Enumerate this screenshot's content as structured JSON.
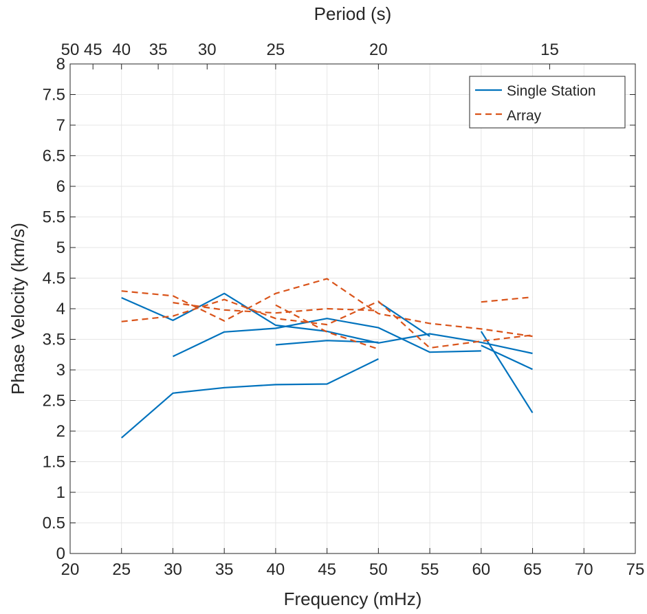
{
  "chart_data": {
    "type": "line",
    "title": "",
    "xlabel": "Frequency (mHz)",
    "ylabel": "Phase Velocity (km/s)",
    "top_xlabel": "Period (s)",
    "xlim": [
      20,
      75
    ],
    "ylim": [
      0,
      8
    ],
    "xticks": [
      "20",
      "25",
      "30",
      "35",
      "40",
      "45",
      "50",
      "55",
      "60",
      "65",
      "70",
      "75"
    ],
    "yticks": [
      "0",
      "0.5",
      "1",
      "1.5",
      "2",
      "2.5",
      "3",
      "3.5",
      "4",
      "4.5",
      "5",
      "5.5",
      "6",
      "6.5",
      "7",
      "7.5",
      "8"
    ],
    "top_xticks": [
      "50",
      "45",
      "40",
      "35",
      "30",
      "25",
      "20",
      "15"
    ],
    "grid": true,
    "legend_position": "top-right",
    "legend": [
      "Single Station",
      "Array"
    ],
    "colors": {
      "Single Station": "#0072BD",
      "Array": "#D95319"
    },
    "series": [
      {
        "group": "Single Station",
        "style": "solid",
        "points": [
          [
            25,
            4.18
          ],
          [
            30,
            3.81
          ],
          [
            35,
            4.25
          ],
          [
            40,
            3.73
          ],
          [
            45,
            3.63
          ],
          [
            50,
            3.44
          ],
          [
            55,
            3.59
          ],
          [
            60,
            3.45
          ],
          [
            65,
            3.27
          ]
        ]
      },
      {
        "group": "Single Station",
        "style": "solid",
        "points": [
          [
            30,
            3.22
          ],
          [
            35,
            3.62
          ],
          [
            40,
            3.68
          ],
          [
            45,
            3.84
          ],
          [
            50,
            3.69
          ],
          [
            55,
            3.29
          ],
          [
            60,
            3.31
          ]
        ]
      },
      {
        "group": "Single Station",
        "style": "solid",
        "points": [
          [
            25,
            1.89
          ],
          [
            30,
            2.62
          ],
          [
            35,
            2.71
          ],
          [
            40,
            2.76
          ],
          [
            45,
            2.77
          ],
          [
            50,
            3.18
          ]
        ]
      },
      {
        "group": "Single Station",
        "style": "solid",
        "points": [
          [
            40,
            3.41
          ],
          [
            45,
            3.48
          ],
          [
            50,
            3.45
          ]
        ]
      },
      {
        "group": "Single Station",
        "style": "solid",
        "points": [
          [
            50,
            4.11
          ],
          [
            55,
            3.55
          ]
        ]
      },
      {
        "group": "Single Station",
        "style": "solid",
        "points": [
          [
            60,
            3.63
          ],
          [
            65,
            2.3
          ]
        ]
      },
      {
        "group": "Single Station",
        "style": "solid",
        "points": [
          [
            60,
            3.4
          ],
          [
            65,
            3.01
          ]
        ]
      },
      {
        "group": "Array",
        "style": "dashed",
        "points": [
          [
            25,
            4.29
          ],
          [
            30,
            4.21
          ],
          [
            35,
            3.8
          ],
          [
            40,
            4.25
          ],
          [
            45,
            4.49
          ],
          [
            50,
            3.92
          ],
          [
            55,
            3.76
          ],
          [
            60,
            3.67
          ],
          [
            65,
            3.55
          ]
        ]
      },
      {
        "group": "Array",
        "style": "dashed",
        "points": [
          [
            25,
            3.79
          ],
          [
            30,
            3.88
          ],
          [
            35,
            4.15
          ],
          [
            40,
            3.84
          ],
          [
            45,
            3.74
          ],
          [
            50,
            4.12
          ],
          [
            55,
            3.36
          ],
          [
            60,
            3.47
          ],
          [
            65,
            3.57
          ]
        ]
      },
      {
        "group": "Array",
        "style": "dashed",
        "points": [
          [
            30,
            4.1
          ],
          [
            35,
            3.98
          ],
          [
            40,
            3.93
          ],
          [
            45,
            4.0
          ],
          [
            50,
            3.97
          ]
        ]
      },
      {
        "group": "Array",
        "style": "dashed",
        "points": [
          [
            40,
            4.06
          ],
          [
            45,
            3.62
          ],
          [
            50,
            3.34
          ]
        ]
      },
      {
        "group": "Array",
        "style": "dashed",
        "points": [
          [
            60,
            4.11
          ],
          [
            65,
            4.19
          ]
        ]
      }
    ]
  }
}
